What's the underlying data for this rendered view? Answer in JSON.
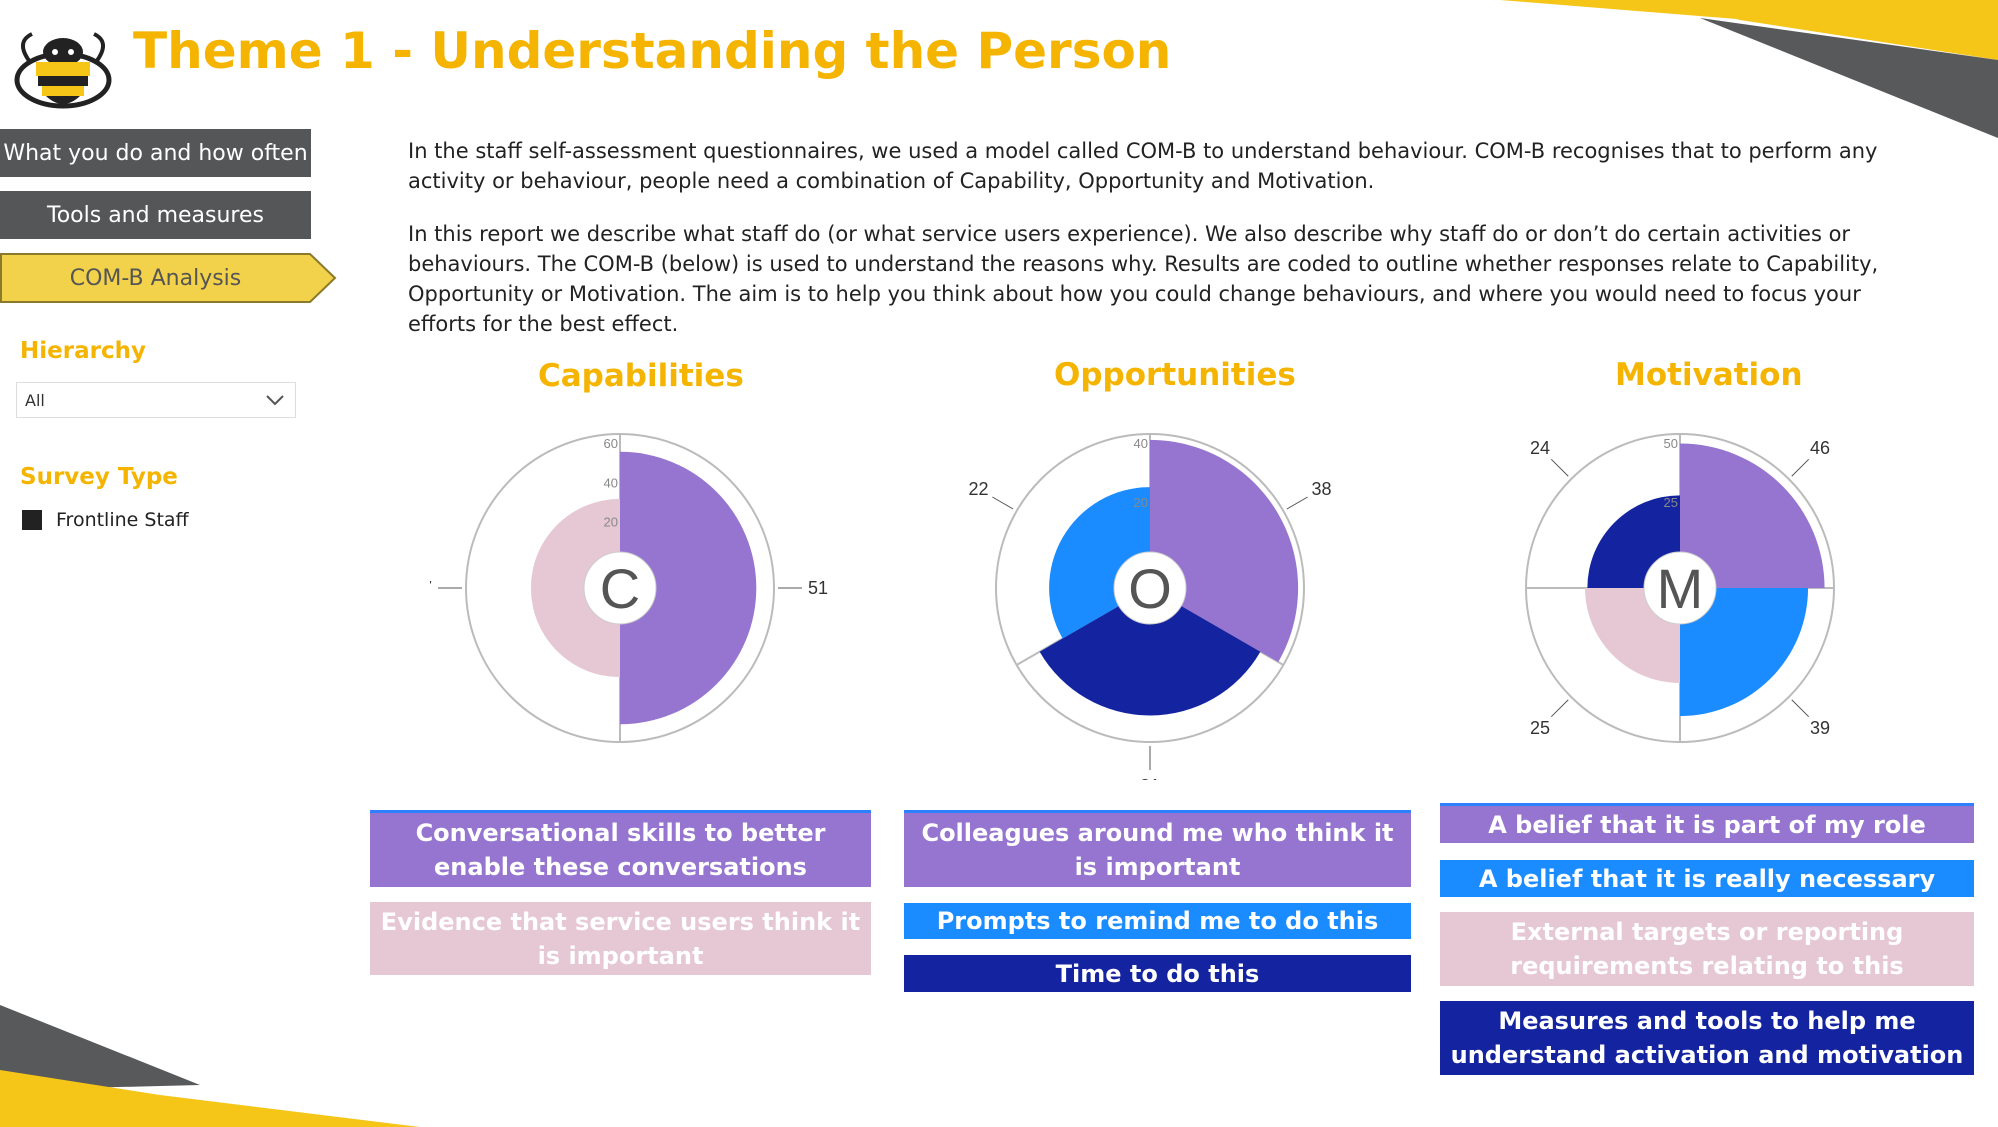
{
  "header": {
    "title": "Theme 1 - Understanding the Person"
  },
  "nav": {
    "items": [
      {
        "label": "What you do and how often"
      },
      {
        "label": "Tools and measures"
      },
      {
        "label": "COM-B Analysis"
      }
    ]
  },
  "filters": {
    "hierarchy_label": "Hierarchy",
    "hierarchy_value": "All",
    "survey_type_label": "Survey Type",
    "survey_type_item": "Frontline Staff"
  },
  "intro": {
    "p1": "In the staff self-assessment questionnaires, we used a model called COM-B to understand behaviour. COM-B recognises  that to perform any activity or behaviour, people need a combination of Capability, Opportunity and Motivation.",
    "p2": "In this report we describe what staff do (or what service users experience). We also describe why staff do or don’t do  certain activities or behaviours. The COM-B (below) is used to understand the reasons why. Results are coded to outline whether responses relate to Capability, Opportunity or Motivation. The aim is to help  you think about how you could change behaviours, and where you would need to focus your efforts for the best effect."
  },
  "colors": {
    "accent": "#f4b400",
    "nav_bg": "#555658",
    "active_nav": "#f2d24b",
    "purple": "#9575d0",
    "blue": "#1a8cff",
    "navy": "#1424a0",
    "pink": "#e6c8d4"
  },
  "chart_data": [
    {
      "type": "polar-area",
      "title": "Capabilities",
      "center_label": "C",
      "scale_max": 60,
      "ticks": [
        "20",
        "40",
        "60"
      ],
      "series": [
        {
          "name": "Conversational skills to better enable these conversations",
          "value": 51,
          "color": "#9575d0"
        },
        {
          "name": "Evidence that service users think it is important",
          "value": 27,
          "color": "#e6c8d4"
        }
      ]
    },
    {
      "type": "polar-area",
      "title": "Opportunities",
      "center_label": "O",
      "scale_max": 40,
      "ticks": [
        "20",
        "40"
      ],
      "series": [
        {
          "name": "Colleagues around me who think it is important",
          "value": 38,
          "color": "#9575d0"
        },
        {
          "name": "Time to do this",
          "value": 31,
          "color": "#1424a0"
        },
        {
          "name": "Prompts to remind me to do this",
          "value": 22,
          "color": "#1a8cff"
        }
      ]
    },
    {
      "type": "polar-area",
      "title": "Motivation",
      "center_label": "M",
      "scale_max": 50,
      "ticks": [
        "25",
        "50"
      ],
      "series": [
        {
          "name": "A belief that it is part of my role",
          "value": 46,
          "color": "#9575d0"
        },
        {
          "name": "A belief that it is really necessary",
          "value": 39,
          "color": "#1a8cff"
        },
        {
          "name": "External targets or reporting requirements relating to this",
          "value": 25,
          "color": "#e6c8d4"
        },
        {
          "name": "Measures and tools to help me understand activation and motivation",
          "value": 24,
          "color": "#1424a0"
        }
      ]
    }
  ],
  "legend_bars": {
    "capabilities": [
      {
        "label": "Conversational skills to better enable these conversations"
      },
      {
        "label": "Evidence that service users think it is important"
      }
    ],
    "opportunities": [
      {
        "label": "Colleagues around me who think it is important"
      },
      {
        "label": "Prompts to remind me to do this"
      },
      {
        "label": "Time to do this"
      }
    ],
    "motivation": [
      {
        "label": "A belief that it is part of my role"
      },
      {
        "label": "A belief that it is really necessary"
      },
      {
        "label": "External targets or reporting requirements relating to this"
      },
      {
        "label": "Measures and tools to help me understand activation and motivation"
      }
    ]
  }
}
